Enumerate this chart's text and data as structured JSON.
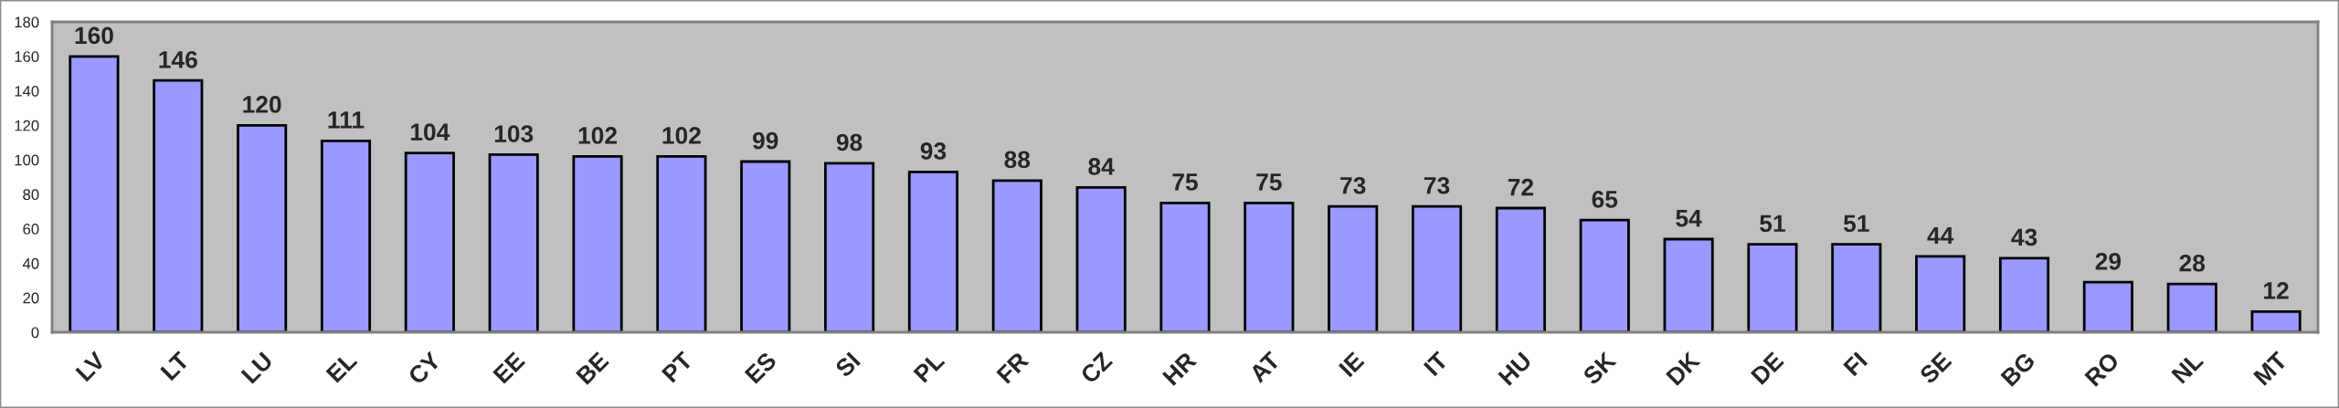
{
  "chart_data": {
    "type": "bar",
    "categories": [
      "LV",
      "LT",
      "LU",
      "EL",
      "CY",
      "EE",
      "BE",
      "PT",
      "ES",
      "SI",
      "PL",
      "FR",
      "CZ",
      "HR",
      "AT",
      "IE",
      "IT",
      "HU",
      "SK",
      "DK",
      "DE",
      "FI",
      "SE",
      "BG",
      "RO",
      "NL",
      "MT"
    ],
    "values": [
      160,
      146,
      120,
      111,
      104,
      103,
      102,
      102,
      99,
      98,
      93,
      88,
      84,
      75,
      75,
      73,
      73,
      72,
      65,
      54,
      51,
      51,
      44,
      43,
      29,
      28,
      12
    ],
    "color": "#9999ff",
    "ylim": [
      0,
      180
    ],
    "yticks": [
      0,
      20,
      40,
      60,
      80,
      100,
      120,
      140,
      160,
      180
    ],
    "data_labels": true,
    "grid": false
  }
}
